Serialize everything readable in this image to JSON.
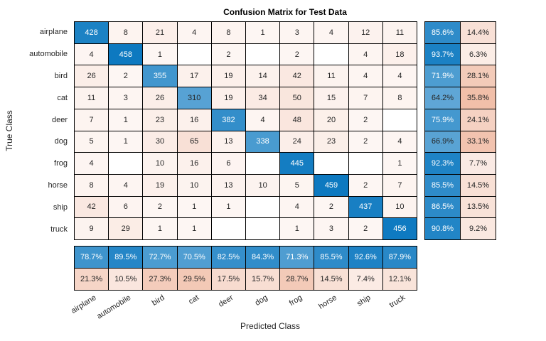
{
  "chart_data": {
    "type": "heatmap",
    "subtype": "confusion_matrix",
    "title": "Confusion Matrix for Test Data",
    "xlabel": "Predicted Class",
    "ylabel": "True Class",
    "classes": [
      "airplane",
      "automobile",
      "bird",
      "cat",
      "deer",
      "dog",
      "frog",
      "horse",
      "ship",
      "truck"
    ],
    "matrix": [
      [
        428,
        8,
        21,
        4,
        8,
        1,
        3,
        4,
        12,
        11
      ],
      [
        4,
        458,
        1,
        0,
        2,
        0,
        2,
        0,
        4,
        18
      ],
      [
        26,
        2,
        355,
        17,
        19,
        14,
        42,
        11,
        4,
        4
      ],
      [
        11,
        3,
        26,
        310,
        19,
        34,
        50,
        15,
        7,
        8
      ],
      [
        7,
        1,
        23,
        16,
        382,
        4,
        48,
        20,
        2,
        0
      ],
      [
        5,
        1,
        30,
        65,
        13,
        338,
        24,
        23,
        2,
        4
      ],
      [
        4,
        0,
        10,
        16,
        6,
        0,
        445,
        0,
        0,
        1
      ],
      [
        8,
        4,
        19,
        10,
        13,
        10,
        5,
        459,
        2,
        7
      ],
      [
        42,
        6,
        2,
        1,
        1,
        0,
        4,
        2,
        437,
        10
      ],
      [
        9,
        29,
        1,
        1,
        0,
        0,
        1,
        3,
        2,
        456
      ]
    ],
    "max_count": 459,
    "row_summary_pct": [
      [
        85.6,
        14.4
      ],
      [
        93.7,
        6.3
      ],
      [
        71.9,
        28.1
      ],
      [
        64.2,
        35.8
      ],
      [
        75.9,
        24.1
      ],
      [
        66.9,
        33.1
      ],
      [
        92.3,
        7.7
      ],
      [
        85.5,
        14.5
      ],
      [
        86.5,
        13.5
      ],
      [
        90.8,
        9.2
      ]
    ],
    "column_summary_pct": [
      [
        78.7,
        89.5,
        72.7,
        70.5,
        82.5,
        84.3,
        71.3,
        85.5,
        92.6,
        87.9
      ],
      [
        21.3,
        10.5,
        27.3,
        29.5,
        17.5,
        15.7,
        28.7,
        14.5,
        7.4,
        12.1
      ]
    ],
    "colors": {
      "diagonal_base": "#0072BD",
      "off_diagonal_base": "#D95319",
      "empty_cell": "#FFFFFF",
      "text_dark": "#262626",
      "text_light": "#FFFFFF",
      "grid_border": "#000000"
    },
    "grid": "on",
    "legend_position": "none",
    "x_tick_rotation_deg": 32
  }
}
